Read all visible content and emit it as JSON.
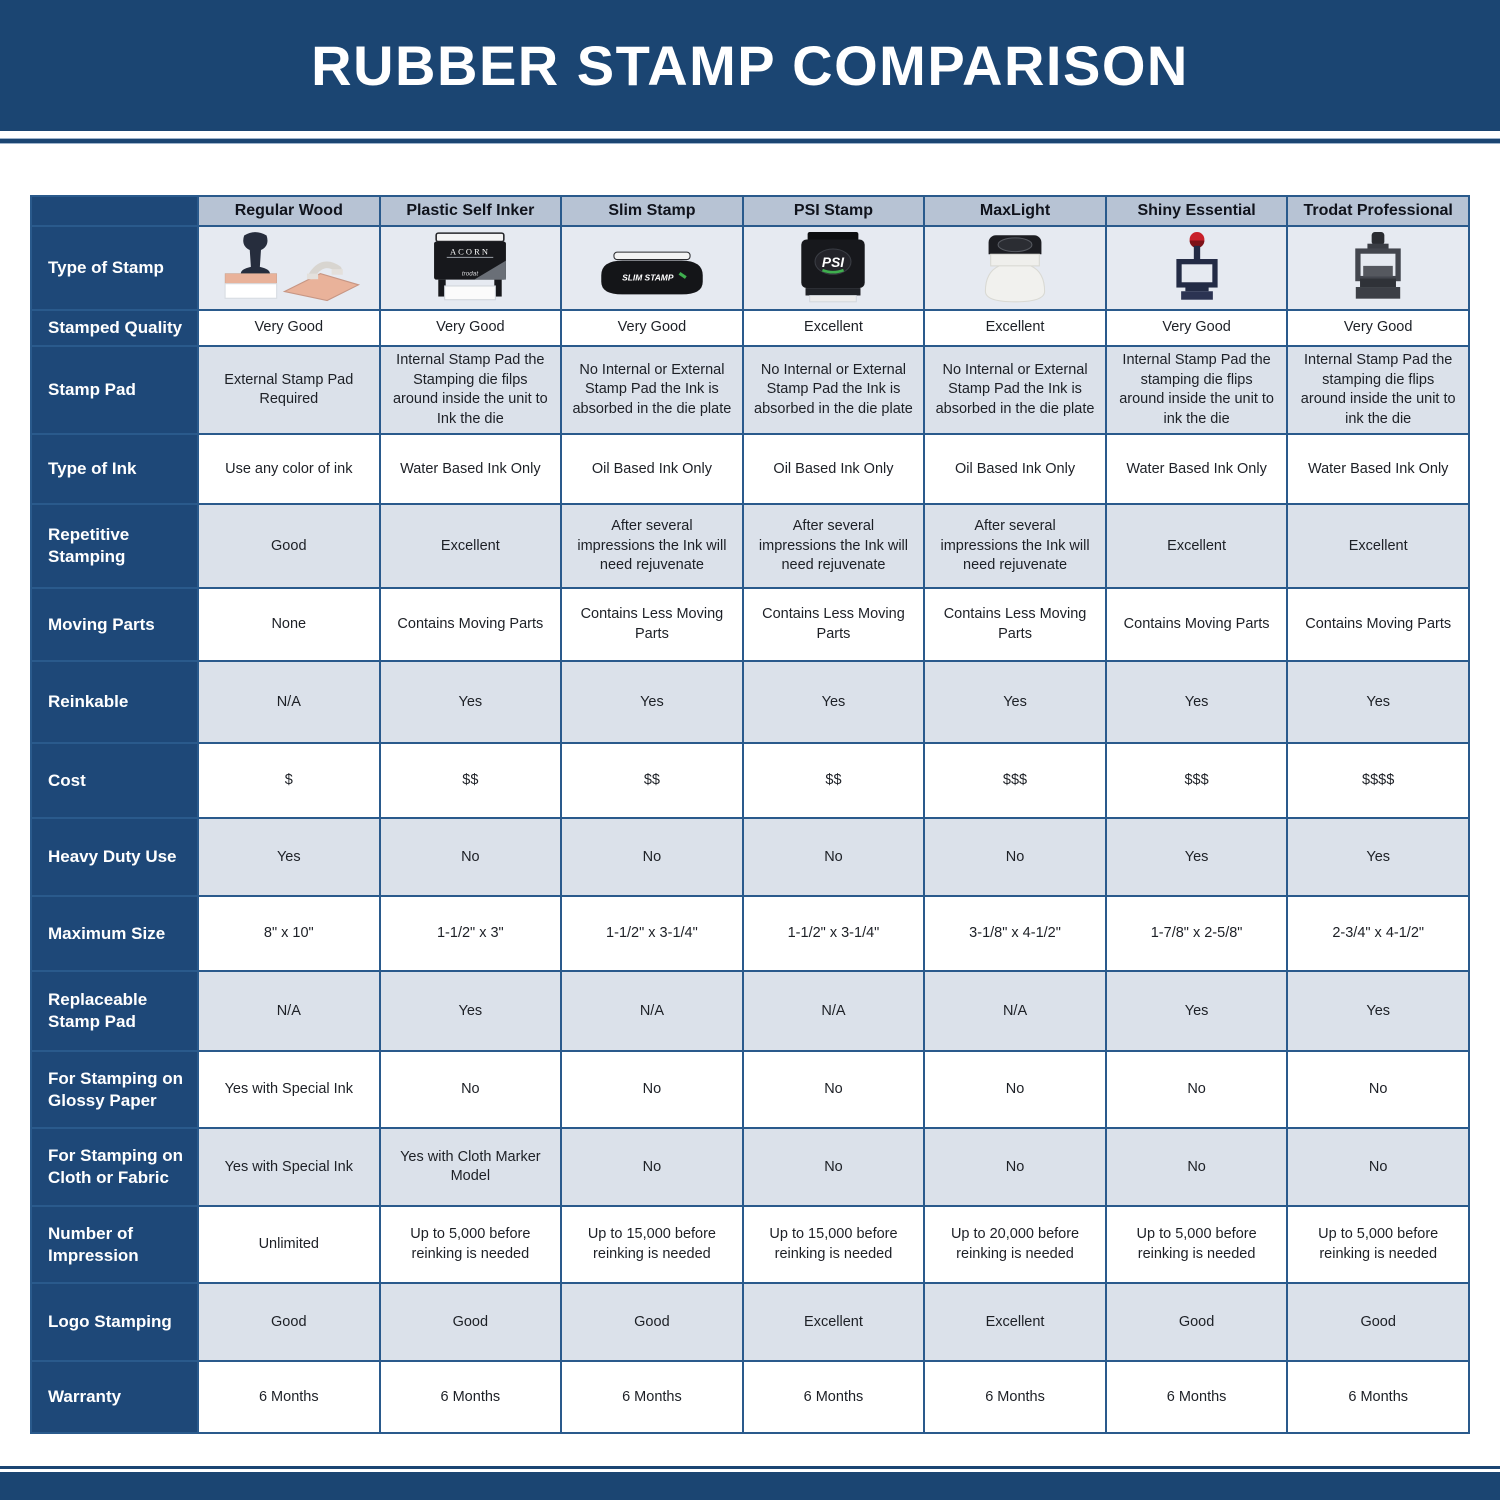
{
  "page": {
    "title": "RUBBER STAMP COMPARISON"
  },
  "colors": {
    "banner_blue": "#1b4572",
    "label_cell_blue": "#1e4878",
    "grid_border_blue": "#2a5a8c",
    "column_header_bg": "#b7c3d4",
    "shaded_row_bg": "#dbe1ea",
    "image_row_bg": "#e6eaf1"
  },
  "table": {
    "columns": [
      {
        "id": "regular-wood",
        "label": "Regular Wood",
        "image": "regular-wood-stamp-image"
      },
      {
        "id": "plastic-self-inker",
        "label": "Plastic Self Inker",
        "image": "plastic-self-inker-stamp-image"
      },
      {
        "id": "slim-stamp",
        "label": "Slim Stamp",
        "image": "slim-stamp-image"
      },
      {
        "id": "psi-stamp",
        "label": "PSI Stamp",
        "image": "psi-stamp-image"
      },
      {
        "id": "maxlight",
        "label": "MaxLight",
        "image": "maxlight-stamp-image"
      },
      {
        "id": "shiny-essential",
        "label": "Shiny Essential",
        "image": "shiny-essential-stamp-image"
      },
      {
        "id": "trodat-professional",
        "label": "Trodat Professional",
        "image": "trodat-professional-stamp-image"
      }
    ],
    "rows": [
      {
        "id": "type-of-stamp",
        "label": "Type of Stamp",
        "type": "images"
      },
      {
        "id": "stamped-quality",
        "label": "Stamped Quality",
        "values": [
          "Very Good",
          "Very Good",
          "Very Good",
          "Excellent",
          "Excellent",
          "Very Good",
          "Very Good"
        ]
      },
      {
        "id": "stamp-pad",
        "label": "Stamp Pad",
        "values": [
          "External Stamp Pad Required",
          "Internal Stamp Pad the Stamping die filps around inside the unit to Ink the die",
          "No Internal or External Stamp Pad the Ink is absorbed in the die plate",
          "No Internal or External Stamp Pad the Ink is absorbed in the die plate",
          "No Internal or External Stamp Pad the Ink is absorbed in the die plate",
          "Internal Stamp Pad the stamping die flips around inside the unit to ink the die",
          "Internal Stamp Pad the stamping die flips around inside the unit to ink the die"
        ]
      },
      {
        "id": "type-of-ink",
        "label": "Type of Ink",
        "values": [
          "Use any color of ink",
          "Water Based Ink Only",
          "Oil Based Ink Only",
          "Oil Based Ink Only",
          "Oil Based Ink Only",
          "Water Based Ink Only",
          "Water Based Ink Only"
        ]
      },
      {
        "id": "repetitive-stamping",
        "label": "Repetitive Stamping",
        "values": [
          "Good",
          "Excellent",
          "After several impressions the Ink will need rejuvenate",
          "After several impressions the Ink will need rejuvenate",
          "After several impressions the Ink will need rejuvenate",
          "Excellent",
          "Excellent"
        ]
      },
      {
        "id": "moving-parts",
        "label": "Moving Parts",
        "values": [
          "None",
          "Contains Moving Parts",
          "Contains Less Moving Parts",
          "Contains Less Moving Parts",
          "Contains Less Moving Parts",
          "Contains Moving Parts",
          "Contains Moving Parts"
        ]
      },
      {
        "id": "reinkable",
        "label": "Reinkable",
        "values": [
          "N/A",
          "Yes",
          "Yes",
          "Yes",
          "Yes",
          "Yes",
          "Yes"
        ]
      },
      {
        "id": "cost",
        "label": "Cost",
        "values": [
          "$",
          "$$",
          "$$",
          "$$",
          "$$$",
          "$$$",
          "$$$$"
        ]
      },
      {
        "id": "heavy-duty-use",
        "label": "Heavy Duty Use",
        "values": [
          "Yes",
          "No",
          "No",
          "No",
          "No",
          "Yes",
          "Yes"
        ]
      },
      {
        "id": "maximum-size",
        "label": "Maximum Size",
        "values": [
          "8\" x 10\"",
          "1-1/2\" x 3\"",
          "1-1/2\" x 3-1/4\"",
          "1-1/2\" x 3-1/4\"",
          "3-1/8\" x 4-1/2\"",
          "1-7/8\" x 2-5/8\"",
          "2-3/4\" x 4-1/2\""
        ]
      },
      {
        "id": "replaceable-stamp-pad",
        "label": "Replaceable Stamp Pad",
        "values": [
          "N/A",
          "Yes",
          "N/A",
          "N/A",
          "N/A",
          "Yes",
          "Yes"
        ]
      },
      {
        "id": "glossy-paper",
        "label": "For Stamping on Glossy Paper",
        "values": [
          "Yes with Special Ink",
          "No",
          "No",
          "No",
          "No",
          "No",
          "No"
        ]
      },
      {
        "id": "cloth-fabric",
        "label": "For Stamping on Cloth or Fabric",
        "values": [
          "Yes with Special Ink",
          "Yes with Cloth Marker Model",
          "No",
          "No",
          "No",
          "No",
          "No"
        ]
      },
      {
        "id": "number-of-impression",
        "label": "Number of Impression",
        "values": [
          "Unlimited",
          "Up to 5,000 before reinking is needed",
          "Up to 15,000 before reinking is needed",
          "Up to 15,000 before reinking is needed",
          "Up to 20,000 before reinking is needed",
          "Up to 5,000 before reinking is needed",
          "Up to 5,000 before reinking is needed"
        ]
      },
      {
        "id": "logo-stamping",
        "label": "Logo Stamping",
        "values": [
          "Good",
          "Good",
          "Good",
          "Excellent",
          "Excellent",
          "Good",
          "Good"
        ]
      },
      {
        "id": "warranty",
        "label": "Warranty",
        "values": [
          "6 Months",
          "6 Months",
          "6 Months",
          "6 Months",
          "6 Months",
          "6 Months",
          "6 Months"
        ]
      }
    ]
  }
}
